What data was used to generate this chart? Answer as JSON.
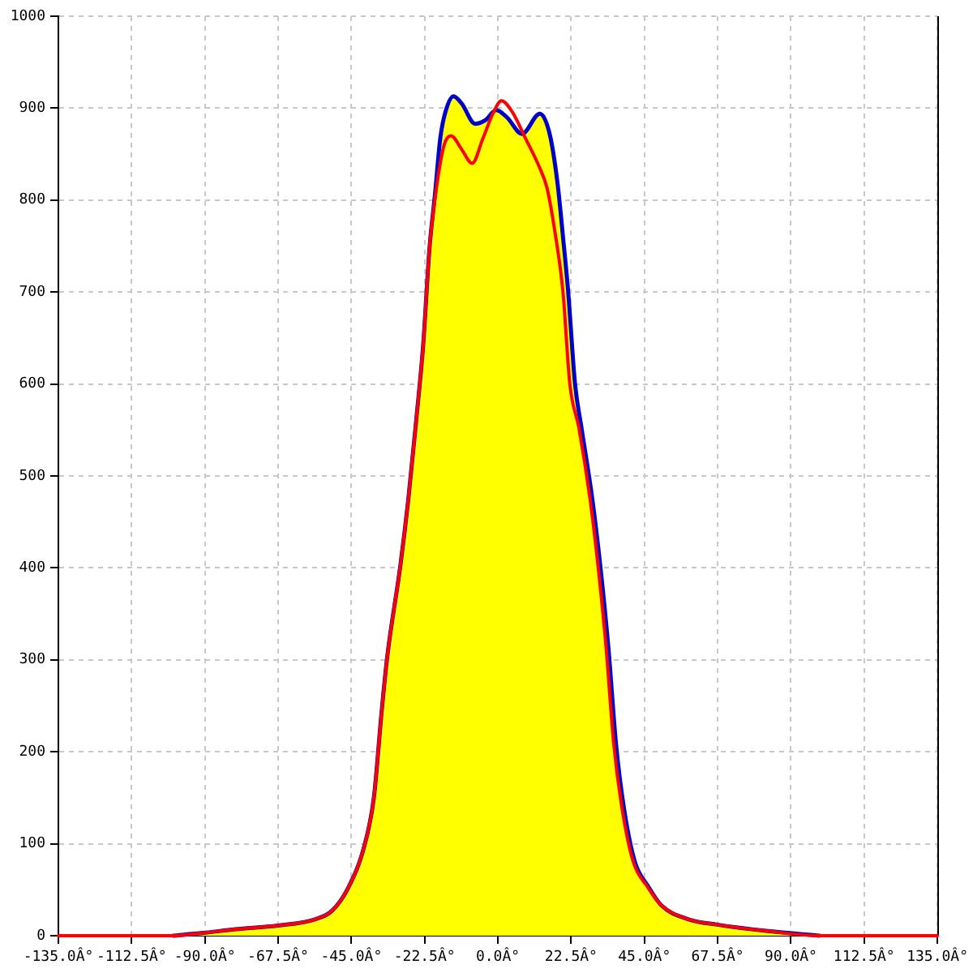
{
  "chart_data": {
    "type": "area",
    "marker": "none",
    "grid": true,
    "xlim": [
      -135,
      135
    ],
    "xticks": [
      {
        "value": -135,
        "label": "-135.0Â°"
      },
      {
        "value": -112.5,
        "label": "-112.5Â°"
      },
      {
        "value": -90,
        "label": "-90.0Â°"
      },
      {
        "value": -67.5,
        "label": "-67.5Â°"
      },
      {
        "value": -45,
        "label": "-45.0Â°"
      },
      {
        "value": -22.5,
        "label": "-22.5Â°"
      },
      {
        "value": 0,
        "label": "0.0Â°"
      },
      {
        "value": 22.5,
        "label": "22.5Â°"
      },
      {
        "value": 45,
        "label": "45.0Â°"
      },
      {
        "value": 67.5,
        "label": "67.5Â°"
      },
      {
        "value": 90,
        "label": "90.0Â°"
      },
      {
        "value": 112.5,
        "label": "112.5Â°"
      },
      {
        "value": 135,
        "label": "135.0Â°"
      }
    ],
    "ylim": [
      0,
      1000
    ],
    "yticks": [
      0,
      100,
      200,
      300,
      400,
      500,
      600,
      700,
      800,
      900,
      1000
    ],
    "x": [
      -100,
      -90.5,
      -80.7,
      -67.6,
      -56,
      -51,
      -46,
      -41,
      -38.1,
      -35.7,
      -34,
      -29.9,
      -27.5,
      -25,
      -23,
      -21,
      -19.3,
      -17.7,
      -16.1,
      -13.6,
      -11.1,
      -7,
      -3.8,
      -0.5,
      2.8,
      7.4,
      12.9,
      15.9,
      18.3,
      20,
      21.6,
      23.7,
      25.7,
      29,
      31.4,
      33.9,
      36.3,
      38.8,
      42.1,
      46.1,
      50.2,
      58.4,
      67.4,
      83,
      99
    ],
    "series": [
      {
        "type": "line",
        "color": "#ff0000",
        "x": [
          -135,
          -100,
          -90.5,
          -80.7,
          -67.6,
          -56,
          -51,
          -46,
          -41,
          -38.1,
          -35.7,
          -34,
          -29.9,
          -27.5,
          -25,
          -23,
          -21,
          -19,
          -16.5,
          -14.4,
          -11.1,
          -7.9,
          -4.6,
          -1.3,
          1.1,
          4.4,
          8.5,
          12.6,
          15.1,
          17.5,
          20,
          22.1,
          24.9,
          28.3,
          30.7,
          33.2,
          35.6,
          38.2,
          41.6,
          45.8,
          50.2,
          58.4,
          67.4,
          83,
          99,
          135
        ],
        "values": [
          0,
          0,
          3,
          7,
          11,
          18,
          27,
          52,
          98,
          150,
          244,
          303,
          404,
          475,
          564,
          640,
          748,
          810,
          860,
          870,
          855,
          840,
          867,
          896,
          908,
          896,
          867,
          837,
          813,
          766,
          700,
          600,
          552,
          475,
          404,
          315,
          208,
          137,
          80,
          54,
          33,
          18,
          12,
          5,
          0,
          0
        ]
      },
      {
        "color": "#ffff00",
        "values": [
          0,
          3,
          7,
          11,
          18,
          27,
          52,
          98,
          150,
          244,
          303,
          404,
          475,
          564,
          640,
          748,
          807,
          867,
          896,
          913,
          905,
          883,
          887,
          898,
          890,
          872,
          894,
          872,
          819,
          760,
          700,
          600,
          552,
          475,
          404,
          315,
          208,
          137,
          80,
          54,
          33,
          18,
          12,
          5,
          0
        ]
      }
    ]
  }
}
